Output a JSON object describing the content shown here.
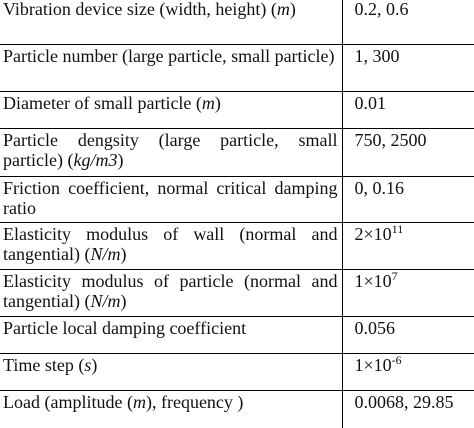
{
  "table": {
    "rows": [
      [
        [
          "Vibration device size (width, height) (",
          {
            "text": "m",
            "style": "italic"
          },
          ")"
        ],
        [
          "0.2, 0.6"
        ]
      ],
      [
        [
          "Particle number (large particle, small particle)"
        ],
        [
          "1, 300"
        ]
      ],
      [
        [
          "Diameter of small particle (",
          {
            "text": "m",
            "style": "italic"
          },
          ")"
        ],
        [
          "0.01"
        ]
      ],
      [
        [
          "Particle dengsity (large particle, small particle) (",
          {
            "text": "kg/m3",
            "style": "italic"
          },
          ")"
        ],
        [
          "750, 2500"
        ]
      ],
      [
        [
          "Friction coefficient, normal critical damping ratio"
        ],
        [
          "0, 0.16"
        ]
      ],
      [
        [
          "Elasticity modulus of wall (normal and tangential) (",
          {
            "text": "N/m",
            "style": "italic"
          },
          ")"
        ],
        [
          "2×10",
          {
            "text": "11",
            "style": "sup"
          }
        ]
      ],
      [
        [
          "Elasticity modulus of particle (normal and tangential) (",
          {
            "text": "N/m",
            "style": "italic"
          },
          ")"
        ],
        [
          "1×10",
          {
            "text": "7",
            "style": "sup"
          }
        ]
      ],
      [
        [
          "Particle local damping coefficient"
        ],
        [
          "0.056"
        ]
      ],
      [
        [
          "Time step (",
          {
            "text": "s",
            "style": "italic"
          },
          ")"
        ],
        [
          "1×10",
          {
            "text": "-6",
            "style": "sup"
          }
        ]
      ],
      [
        [
          "Load (amplitude (",
          {
            "text": "m",
            "style": "italic"
          },
          "), frequency )"
        ],
        [
          "0.0068, 29.85"
        ]
      ]
    ]
  }
}
